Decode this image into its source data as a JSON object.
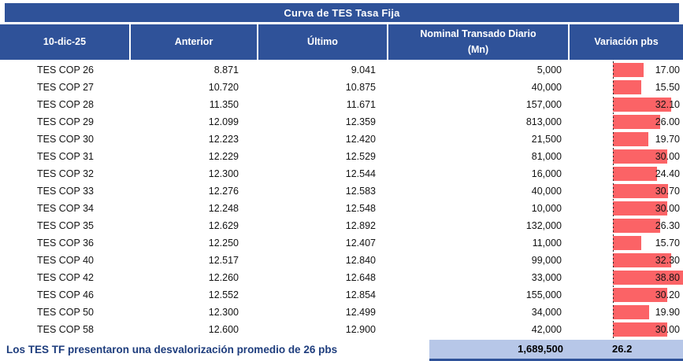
{
  "title": "Curva de TES Tasa Fija",
  "header": {
    "date": "10-dic-25",
    "anterior": "Anterior",
    "ultimo": "Último",
    "nominal": "Nominal Transado Diario (Mn)",
    "variacion": "Variación pbs"
  },
  "rows": [
    {
      "name": "TES COP 26",
      "anterior": "8.871",
      "ultimo": "9.041",
      "nominal": "5,000",
      "variacion": "17.00",
      "variacion_value": 17.0
    },
    {
      "name": "TES COP 27",
      "anterior": "10.720",
      "ultimo": "10.875",
      "nominal": "40,000",
      "variacion": "15.50",
      "variacion_value": 15.5
    },
    {
      "name": "TES COP 28",
      "anterior": "11.350",
      "ultimo": "11.671",
      "nominal": "157,000",
      "variacion": "32.10",
      "variacion_value": 32.1
    },
    {
      "name": "TES COP 29",
      "anterior": "12.099",
      "ultimo": "12.359",
      "nominal": "813,000",
      "variacion": "26.00",
      "variacion_value": 26.0
    },
    {
      "name": "TES COP 30",
      "anterior": "12.223",
      "ultimo": "12.420",
      "nominal": "21,500",
      "variacion": "19.70",
      "variacion_value": 19.7
    },
    {
      "name": "TES COP 31",
      "anterior": "12.229",
      "ultimo": "12.529",
      "nominal": "81,000",
      "variacion": "30.00",
      "variacion_value": 30.0
    },
    {
      "name": "TES COP 32",
      "anterior": "12.300",
      "ultimo": "12.544",
      "nominal": "16,000",
      "variacion": "24.40",
      "variacion_value": 24.4
    },
    {
      "name": "TES COP 33",
      "anterior": "12.276",
      "ultimo": "12.583",
      "nominal": "40,000",
      "variacion": "30.70",
      "variacion_value": 30.7
    },
    {
      "name": "TES COP 34",
      "anterior": "12.248",
      "ultimo": "12.548",
      "nominal": "10,000",
      "variacion": "30.00",
      "variacion_value": 30.0
    },
    {
      "name": "TES COP 35",
      "anterior": "12.629",
      "ultimo": "12.892",
      "nominal": "132,000",
      "variacion": "26.30",
      "variacion_value": 26.3
    },
    {
      "name": "TES COP 36",
      "anterior": "12.250",
      "ultimo": "12.407",
      "nominal": "11,000",
      "variacion": "15.70",
      "variacion_value": 15.7
    },
    {
      "name": "TES COP 40",
      "anterior": "12.517",
      "ultimo": "12.840",
      "nominal": "99,000",
      "variacion": "32.30",
      "variacion_value": 32.3
    },
    {
      "name": "TES COP 42",
      "anterior": "12.260",
      "ultimo": "12.648",
      "nominal": "33,000",
      "variacion": "38.80",
      "variacion_value": 38.8
    },
    {
      "name": "TES COP 46",
      "anterior": "12.552",
      "ultimo": "12.854",
      "nominal": "155,000",
      "variacion": "30.20",
      "variacion_value": 30.2
    },
    {
      "name": "TES COP 50",
      "anterior": "12.300",
      "ultimo": "12.499",
      "nominal": "34,000",
      "variacion": "19.90",
      "variacion_value": 19.9
    },
    {
      "name": "TES COP 58",
      "anterior": "12.600",
      "ultimo": "12.900",
      "nominal": "42,000",
      "variacion": "30.00",
      "variacion_value": 30.0
    }
  ],
  "footer": {
    "note": "Los TES TF presentaron una desvalorización promedio de 26 pbs",
    "total_nominal": "1,689,500",
    "avg_variacion": "26.2"
  },
  "colors": {
    "header_bg": "#2F5299",
    "bar": "#FB6366",
    "summary_bg": "#B7C7E8",
    "note_text": "#1E3D7D"
  },
  "chart_data": {
    "type": "table",
    "title": "Curva de TES Tasa Fija",
    "columns": [
      "10-dic-25",
      "Anterior",
      "Último",
      "Nominal Transado Diario (Mn)",
      "Variación pbs"
    ],
    "rows": [
      [
        "TES COP 26",
        8.871,
        9.041,
        5000,
        17.0
      ],
      [
        "TES COP 27",
        10.72,
        10.875,
        40000,
        15.5
      ],
      [
        "TES COP 28",
        11.35,
        11.671,
        157000,
        32.1
      ],
      [
        "TES COP 29",
        12.099,
        12.359,
        813000,
        26.0
      ],
      [
        "TES COP 30",
        12.223,
        12.42,
        21500,
        19.7
      ],
      [
        "TES COP 31",
        12.229,
        12.529,
        81000,
        30.0
      ],
      [
        "TES COP 32",
        12.3,
        12.544,
        16000,
        24.4
      ],
      [
        "TES COP 33",
        12.276,
        12.583,
        40000,
        30.7
      ],
      [
        "TES COP 34",
        12.248,
        12.548,
        10000,
        30.0
      ],
      [
        "TES COP 35",
        12.629,
        12.892,
        132000,
        26.3
      ],
      [
        "TES COP 36",
        12.25,
        12.407,
        11000,
        15.7
      ],
      [
        "TES COP 40",
        12.517,
        12.84,
        99000,
        32.3
      ],
      [
        "TES COP 42",
        12.26,
        12.648,
        33000,
        38.8
      ],
      [
        "TES COP 46",
        12.552,
        12.854,
        155000,
        30.2
      ],
      [
        "TES COP 50",
        12.3,
        12.499,
        34000,
        19.9
      ],
      [
        "TES COP 58",
        12.6,
        12.9,
        42000,
        30.0
      ]
    ],
    "data_bars": {
      "column": "Variación pbs",
      "color": "#FB6366",
      "axis": true,
      "scale_max": 38.8
    },
    "totals": {
      "nominal_transado_diario": 1689500,
      "variacion_promedio_pbs": 26.2
    },
    "note": "Los TES TF presentaron una desvalorización promedio de 26 pbs"
  }
}
